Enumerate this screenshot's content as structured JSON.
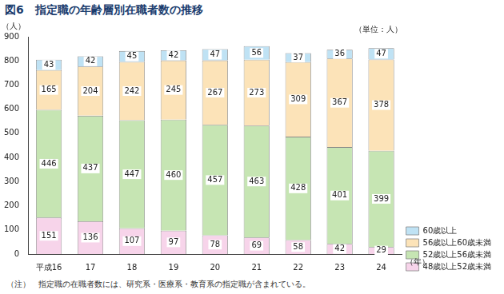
{
  "chart_data": {
    "type": "bar",
    "title": "図6　指定職の年齢層別在職者数の推移",
    "subtitle": "（単位：人）",
    "ylabel": "（人）",
    "xlabel": "（年）",
    "note": "（注）　指定職の在職者数には、研究系・医療系・教育系の指定職が含まれている。",
    "categories": [
      "平成16",
      "17",
      "18",
      "19",
      "20",
      "21",
      "22",
      "23",
      "24"
    ],
    "series": [
      {
        "name": "48歳以上52歳未満",
        "color": "#f7d4ea",
        "values": [
          151,
          136,
          107,
          97,
          78,
          69,
          58,
          42,
          29
        ]
      },
      {
        "name": "52歳以上56歳未満",
        "color": "#c6e5b3",
        "values": [
          446,
          437,
          447,
          460,
          457,
          463,
          428,
          401,
          399
        ]
      },
      {
        "name": "56歳以上60歳未満",
        "color": "#fce3b8",
        "values": [
          165,
          204,
          242,
          245,
          267,
          273,
          309,
          367,
          378
        ]
      },
      {
        "name": "60歳以上",
        "color": "#bfe2f4",
        "values": [
          43,
          42,
          45,
          42,
          47,
          56,
          37,
          36,
          47
        ]
      }
    ],
    "ylim": [
      0,
      900
    ],
    "yticks": [
      0,
      100,
      200,
      300,
      400,
      500,
      600,
      700,
      800,
      900
    ],
    "stacked": true,
    "data_labels": true,
    "grid": false,
    "legend": "bottom-right"
  }
}
